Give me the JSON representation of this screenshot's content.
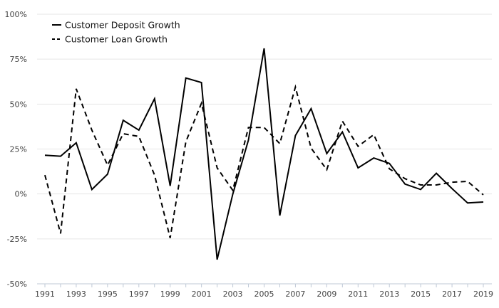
{
  "chart_data": {
    "type": "line",
    "title": "",
    "xlabel": "",
    "ylabel": "",
    "x": [
      1991,
      1992,
      1993,
      1994,
      1995,
      1996,
      1997,
      1998,
      1999,
      2000,
      2001,
      2002,
      2003,
      2004,
      2005,
      2006,
      2007,
      2008,
      2009,
      2010,
      2011,
      2012,
      2013,
      2014,
      2015,
      2016,
      2017,
      2018,
      2019
    ],
    "x_tick_labels": [
      "1991",
      "1993",
      "1995",
      "1997",
      "1999",
      "2001",
      "2003",
      "2005",
      "2007",
      "2009",
      "2011",
      "2013",
      "2015",
      "2017",
      "2019"
    ],
    "y_ticks": [
      -50,
      -25,
      0,
      25,
      50,
      75,
      100
    ],
    "y_tick_labels": [
      "-50%",
      "-25%",
      "0%",
      "25%",
      "50%",
      "75%",
      "100%"
    ],
    "ylim": [
      -50,
      100
    ],
    "grid": "horizontal",
    "legend_position": "top-left",
    "series": [
      {
        "name": "Customer Deposit Growth",
        "style": "solid",
        "color": "#000000",
        "values": [
          21.5,
          21,
          28.5,
          2.5,
          11,
          41,
          35.5,
          53,
          4.5,
          64.5,
          62,
          -36.5,
          0,
          30,
          81,
          -12,
          32.5,
          47.5,
          22.5,
          34.5,
          14.5,
          20,
          17,
          5.5,
          2.5,
          11.5,
          3,
          -5,
          -4.5
        ]
      },
      {
        "name": "Customer Loan Growth",
        "style": "dashed",
        "color": "#000000",
        "values": [
          10.5,
          -22,
          58.5,
          35.5,
          16,
          33.5,
          32,
          10.5,
          -24.5,
          29,
          50.5,
          14.5,
          2,
          37,
          37,
          28,
          59.5,
          25.5,
          13.5,
          40.5,
          26.5,
          33,
          14,
          8.5,
          5,
          5,
          6.5,
          7,
          -0.5
        ]
      }
    ]
  }
}
